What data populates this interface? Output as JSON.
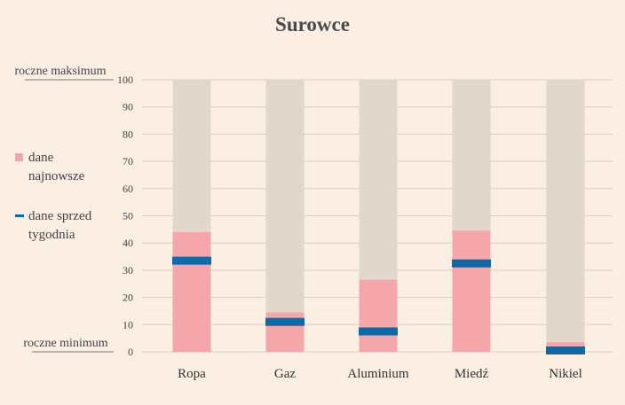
{
  "chart_data": {
    "type": "bar",
    "title": "Surowce",
    "categories": [
      "Ropa",
      "Gaz",
      "Aluminium",
      "Miedź",
      "Nikiel"
    ],
    "ylim": [
      0,
      100
    ],
    "yticks": [
      0,
      10,
      20,
      30,
      40,
      50,
      60,
      70,
      80,
      90,
      100
    ],
    "grid": true,
    "series": [
      {
        "name": "dane najnowsze",
        "type": "bar",
        "values": [
          44,
          14.5,
          26.5,
          44.5,
          3.5
        ]
      },
      {
        "name": "dane sprzed tygodnia",
        "type": "marker",
        "values": [
          33.5,
          11,
          7.5,
          32.5,
          0.5
        ]
      }
    ],
    "range_label_top": "roczne maksimum",
    "range_label_bottom": "roczne minimum",
    "legend": {
      "position": "left",
      "items": [
        {
          "lines": [
            "dane",
            "najnowsze"
          ],
          "color": "#f5a6ab",
          "marker": "square"
        },
        {
          "lines": [
            "dane sprzed",
            "tygodnia"
          ],
          "color": "#0b6aa8",
          "marker": "dash"
        }
      ]
    },
    "colors": {
      "background": "#fbeee3",
      "range_bar": "#e2d7cd",
      "latest": "#f5a6ab",
      "week_ago": "#0b6aa8",
      "grid": "#d9cfc7"
    }
  }
}
